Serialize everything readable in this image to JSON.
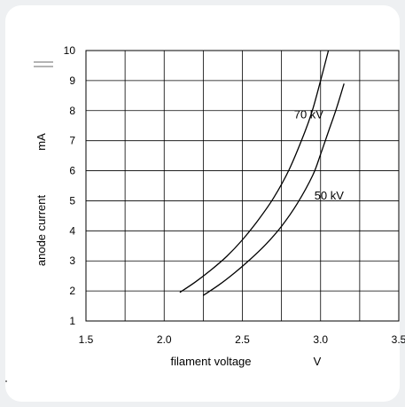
{
  "chart_data": {
    "type": "line",
    "x_ticks": [
      "1.5",
      "2.0",
      "2.5",
      "3.0",
      "3.5"
    ],
    "y_ticks": [
      "1",
      "2",
      "3",
      "4",
      "5",
      "6",
      "7",
      "8",
      "9",
      "10"
    ],
    "xlim": [
      1.5,
      3.5
    ],
    "ylim": [
      1,
      10
    ],
    "xlabel": "filament voltage",
    "xunit": "V",
    "ylabel": "anode current",
    "yunit": "mA",
    "grid": true,
    "series": [
      {
        "name": "70 kV",
        "x": [
          2.1,
          2.2,
          2.3,
          2.4,
          2.5,
          2.6,
          2.7,
          2.8,
          2.9,
          2.95,
          3.0,
          3.05
        ],
        "y": [
          1.95,
          2.3,
          2.7,
          3.15,
          3.7,
          4.35,
          5.1,
          6.05,
          7.3,
          8.05,
          9.0,
          10.0
        ]
      },
      {
        "name": "50 kV",
        "x": [
          2.25,
          2.35,
          2.45,
          2.55,
          2.65,
          2.75,
          2.85,
          2.95,
          3.0,
          3.05,
          3.1,
          3.15
        ],
        "y": [
          1.85,
          2.2,
          2.6,
          3.05,
          3.55,
          4.15,
          4.9,
          5.85,
          6.55,
          7.3,
          8.05,
          8.9
        ]
      }
    ]
  }
}
